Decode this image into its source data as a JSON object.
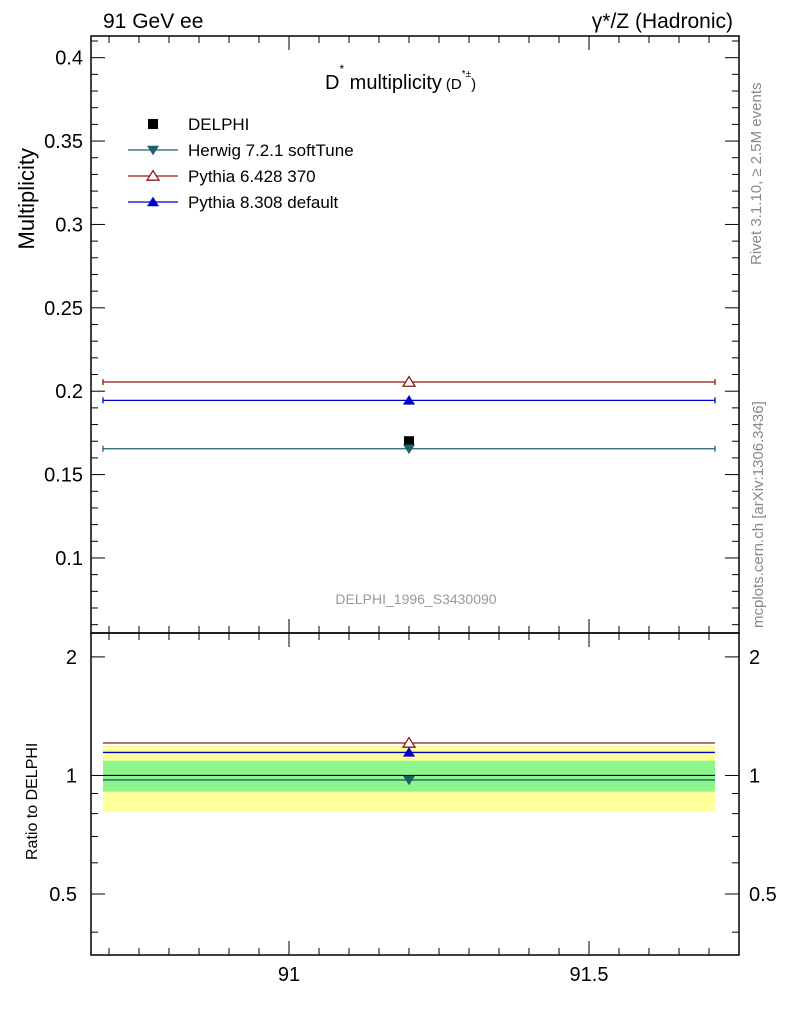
{
  "header": {
    "left": "91 GeV ee",
    "right": "γ*/Z (Hadronic)"
  },
  "side_labels": {
    "rivet": "Rivet 3.1.10, ≥ 2.5M events",
    "mcplots": "mcplots.cern.ch [arXiv:1306.3436]"
  },
  "analysis_id": "DELPHI_1996_S3430090",
  "colors": {
    "delphi": "#000000",
    "herwig": "#1f5f6b",
    "pythia6": "#8b1a1a",
    "pythia8": "#0000cc",
    "band_inner": "#8cf58c",
    "band_outer": "#ffff99"
  },
  "chart_data": [
    {
      "type": "scatter",
      "title_main": "D",
      "title_sup": "*",
      "title_rest": " multiplicity",
      "title_paren_open": "(D",
      "title_paren_sup": "*±",
      "title_paren_close": ")",
      "ylabel": "Multiplicity",
      "xlim": [
        90.67,
        91.75
      ],
      "ylim": [
        0.055,
        0.413
      ],
      "x_ticks": [
        91,
        91.5
      ],
      "y_ticks": [
        0.1,
        0.15,
        0.2,
        0.25,
        0.3,
        0.35,
        0.4
      ],
      "y_tick_labels": [
        "0.1",
        "0.15",
        "0.2",
        "0.25",
        "0.3",
        "0.35",
        "0.4"
      ],
      "legend_position": "top-left",
      "series": [
        {
          "name": "DELPHI",
          "marker": "square",
          "x": 91.2,
          "y": 0.17,
          "xerr": [
            0,
            0
          ],
          "color": "#000000"
        },
        {
          "name": "Herwig 7.2.1 softTune",
          "marker": "triangle-down",
          "x": 91.2,
          "y": 0.1655,
          "xerr": [
            90.69,
            91.71
          ],
          "color": "#1f5f6b"
        },
        {
          "name": "Pythia 6.428 370",
          "marker": "triangle-up-open",
          "x": 91.2,
          "y": 0.2055,
          "xerr": [
            90.69,
            91.71
          ],
          "color": "#8b1a1a"
        },
        {
          "name": "Pythia 8.308 default",
          "marker": "triangle-up",
          "x": 91.2,
          "y": 0.1945,
          "xerr": [
            90.69,
            91.71
          ],
          "color": "#0000cc"
        }
      ]
    },
    {
      "type": "scatter",
      "ylabel": "Ratio to DELPHI",
      "xlim": [
        90.67,
        91.75
      ],
      "ylim": [
        0.35,
        2.3
      ],
      "x_ticks": [
        91,
        91.5
      ],
      "x_tick_labels": [
        "91",
        "91.5"
      ],
      "y_ticks": [
        0.5,
        1,
        2
      ],
      "y_tick_labels": [
        "0.5",
        "1",
        "2"
      ],
      "band_inner": [
        0.91,
        1.09
      ],
      "band_outer": [
        0.81,
        1.19
      ],
      "series": [
        {
          "name": "Herwig 7.2.1 softTune",
          "x": 91.2,
          "y": 0.974
        },
        {
          "name": "Pythia 6.428 370",
          "x": 91.2,
          "y": 1.209
        },
        {
          "name": "Pythia 8.308 default",
          "x": 91.2,
          "y": 1.144
        }
      ]
    }
  ]
}
